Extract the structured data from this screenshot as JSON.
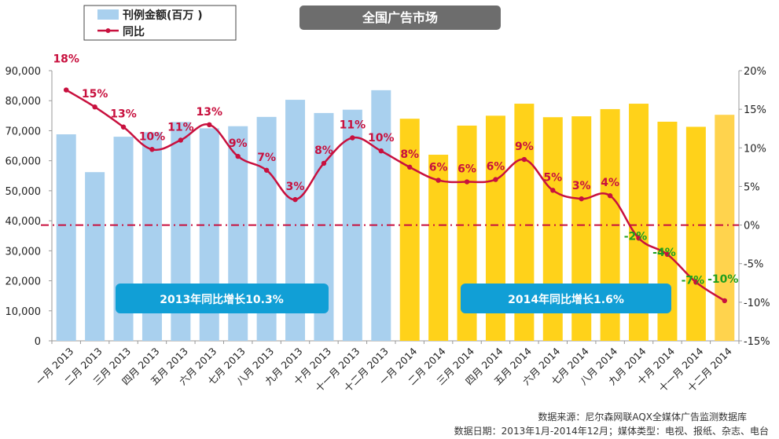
{
  "chart_data": {
    "type": "bar",
    "title": "全国广告市场",
    "categories": [
      "一月 2013",
      "二月 2013",
      "三月 2013",
      "四月 2013",
      "五月 2013",
      "六月 2013",
      "七月 2013",
      "八月 2013",
      "九月 2013",
      "十月 2013",
      "十一月 2013",
      "十二月 2013",
      "一月 2014",
      "二月 2014",
      "三月 2014",
      "四月 2014",
      "五月 2014",
      "六月 2014",
      "七月 2014",
      "八月 2014",
      "九月 2014",
      "十月 2014",
      "十一月 2014",
      "十二月 2014"
    ],
    "series": [
      {
        "name": "刊例金额(百万 )",
        "type": "bar",
        "axis": "left",
        "values": [
          68800,
          56200,
          68000,
          69500,
          72900,
          70800,
          71500,
          74600,
          80300,
          75900,
          77000,
          83500,
          74000,
          62000,
          71700,
          75000,
          79000,
          74500,
          74800,
          77200,
          79000,
          73000,
          71300,
          75300
        ]
      },
      {
        "name": "同比",
        "type": "line",
        "axis": "right",
        "values": [
          17.5,
          15.3,
          12.7,
          9.8,
          11.0,
          13.0,
          8.9,
          7.1,
          3.3,
          8.0,
          11.3,
          9.6,
          7.5,
          5.8,
          5.6,
          5.9,
          8.5,
          4.5,
          3.4,
          3.8,
          -1.7,
          -3.8,
          -7.4,
          -9.8
        ],
        "labels": [
          "18%",
          "15%",
          "13%",
          "10%",
          "11%",
          "13%",
          "9%",
          "7%",
          "3%",
          "8%",
          "11%",
          "10%",
          "8%",
          "6%",
          "6%",
          "6%",
          "9%",
          "5%",
          "3%",
          "4%",
          "-2%",
          "-4%",
          "-7%",
          "-10%"
        ]
      }
    ],
    "y_left": {
      "min": 0,
      "max": 90000,
      "step": 10000,
      "ticks": [
        "0",
        "10,000",
        "20,000",
        "30,000",
        "40,000",
        "50,000",
        "60,000",
        "70,000",
        "80,000",
        "90,000"
      ]
    },
    "y_right": {
      "min": -15,
      "max": 20,
      "step": 5,
      "ticks": [
        "-15%",
        "-10%",
        "-5%",
        "0%",
        "5%",
        "10%",
        "15%",
        "20%"
      ]
    },
    "reference_line": {
      "axis": "right",
      "value": 0
    },
    "annotations": [
      "2013年同比增长10.3%",
      "2014年同比增长1.6%"
    ],
    "legend": [
      "刊例金额(百万 )",
      "同比"
    ],
    "colors": {
      "bar_2013": "#a9d0ee",
      "bar_2014": "#ffd21a",
      "bar_2014_last": "#ffd34d",
      "line": "#c8103e",
      "ref_line": "#c8103e",
      "label_pos": "#c8103e",
      "label_neg": "#1f9e1f",
      "banner": "#119fd6",
      "title_bg": "#6d6d6d"
    }
  },
  "source": {
    "line1": "数据来源：尼尔森网联AQX全媒体广告监测数据库",
    "line2": "数据日期：2013年1月-2014年12月；媒体类型：电视、报纸、杂志、电台"
  }
}
